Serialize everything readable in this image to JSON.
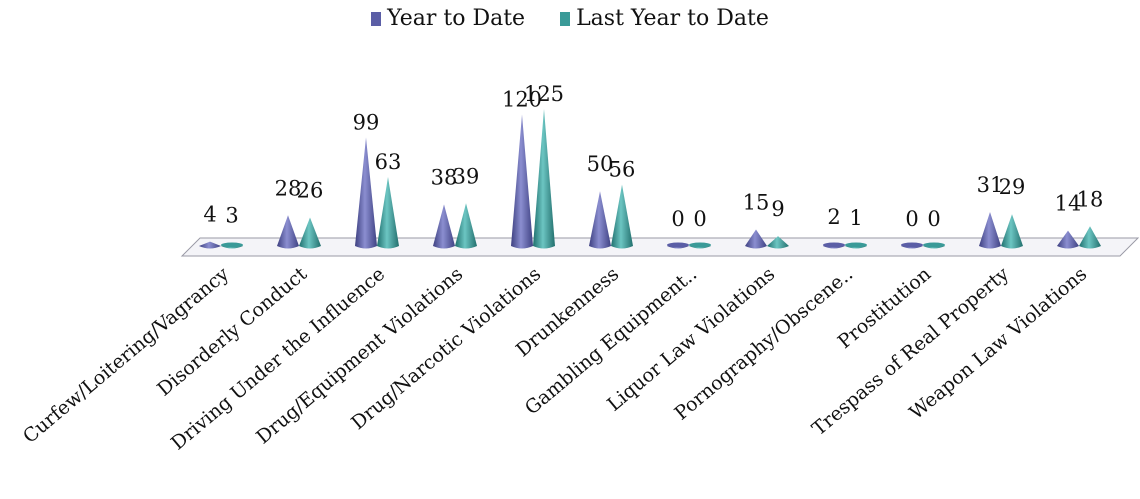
{
  "chart_data": {
    "type": "bar",
    "categories": [
      "Curfew/Loitering/Vagrancy",
      "Disorderly Conduct",
      "Driving Under the Influence",
      "Drug/Equipment Violations",
      "Drug/Narcotic Violations",
      "Drunkenness",
      "Gambling Equipment..",
      "Liquor Law Violations",
      "Pornography/Obscene..",
      "Prostitution",
      "Trespass of Real Property",
      "Weapon Law Violations"
    ],
    "series": [
      {
        "name": "Year to Date",
        "values": [
          4,
          28,
          99,
          38,
          120,
          50,
          0,
          15,
          2,
          0,
          31,
          14
        ]
      },
      {
        "name": "Last Year to Date",
        "values": [
          3,
          26,
          63,
          39,
          125,
          56,
          0,
          9,
          1,
          0,
          29,
          18
        ]
      }
    ],
    "colors": [
      "#5b5ea6",
      "#3a9a98"
    ],
    "legend_position": "top",
    "grid": false
  }
}
